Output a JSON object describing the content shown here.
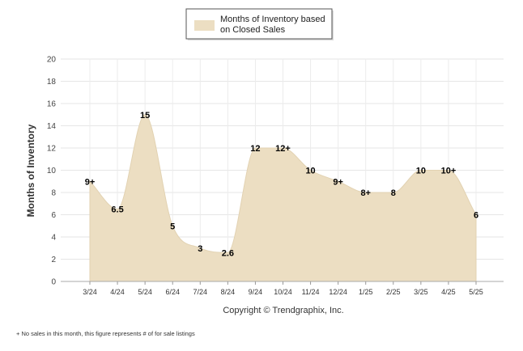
{
  "chart_data": {
    "type": "area",
    "title": "",
    "legend": {
      "label_line1": "Months of Inventory based",
      "label_line2": "on Closed Sales",
      "position": "top-center"
    },
    "ylabel": "Months of Inventory",
    "xlabel": "",
    "ylim": [
      0,
      20
    ],
    "yticks": [
      "0",
      "2",
      "4",
      "6",
      "8",
      "10",
      "12",
      "14",
      "16",
      "18",
      "20"
    ],
    "grid": true,
    "categories": [
      "3/24",
      "4/24",
      "5/24",
      "6/24",
      "7/24",
      "8/24",
      "9/24",
      "10/24",
      "11/24",
      "12/24",
      "1/25",
      "2/25",
      "3/25",
      "4/25",
      "5/25"
    ],
    "series": [
      {
        "name": "Months of Inventory based on Closed Sales",
        "values": [
          9,
          6.5,
          15,
          5,
          3,
          2.6,
          12,
          12,
          10,
          9,
          8,
          8,
          10,
          10,
          6
        ],
        "labels": [
          "9+",
          "6.5",
          "15",
          "5",
          "3",
          "2.6",
          "12",
          "12+",
          "10",
          "9+",
          "8+",
          "8",
          "10",
          "10+",
          "6"
        ],
        "color": "#ecdec2"
      }
    ],
    "copyright": "Copyright © Trendgraphix, Inc.",
    "footnote": "+  No sales in this month, this figure represents # of for sale listings"
  }
}
